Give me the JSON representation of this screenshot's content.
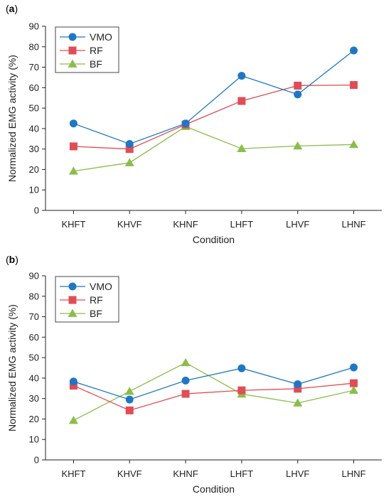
{
  "chart_data": [
    {
      "type": "line",
      "panel_label": "a",
      "categories": [
        "KHFT",
        "KHVF",
        "KHNF",
        "LHFT",
        "LHVF",
        "LHNF"
      ],
      "xlabel": "Condition",
      "ylabel": "Normalized EMG activity (%)",
      "ylim": [
        0,
        90
      ],
      "yticks": [
        0,
        10,
        20,
        30,
        40,
        50,
        60,
        70,
        80,
        90
      ],
      "grid": false,
      "legend_position": "top-left",
      "series": [
        {
          "name": "VMO",
          "color": "#1f77c4",
          "marker": "circle",
          "values": [
            42.5,
            32.5,
            42.5,
            65.8,
            56.7,
            78.2
          ]
        },
        {
          "name": "RF",
          "color": "#e04d55",
          "marker": "square",
          "values": [
            31.3,
            30.0,
            42.0,
            53.5,
            61.0,
            61.3
          ]
        },
        {
          "name": "BF",
          "color": "#8cbd4a",
          "marker": "triangle",
          "values": [
            19.2,
            23.3,
            41.0,
            30.2,
            31.5,
            32.2
          ]
        }
      ]
    },
    {
      "type": "line",
      "panel_label": "b",
      "categories": [
        "KHFT",
        "KHVF",
        "KHNF",
        "LHFT",
        "LHVF",
        "LHNF"
      ],
      "xlabel": "Condition",
      "ylabel": "Normalized EMG activity (%)",
      "ylim": [
        0,
        90
      ],
      "yticks": [
        0,
        10,
        20,
        30,
        40,
        50,
        60,
        70,
        80,
        90
      ],
      "grid": false,
      "legend_position": "top-left",
      "series": [
        {
          "name": "VMO",
          "color": "#1f77c4",
          "marker": "circle",
          "values": [
            38.3,
            29.5,
            38.8,
            44.8,
            37.0,
            45.2
          ]
        },
        {
          "name": "RF",
          "color": "#e04d55",
          "marker": "square",
          "values": [
            36.3,
            24.2,
            32.3,
            34.0,
            34.8,
            37.5
          ]
        },
        {
          "name": "BF",
          "color": "#8cbd4a",
          "marker": "triangle",
          "values": [
            19.3,
            33.5,
            47.5,
            32.2,
            27.8,
            34.0
          ]
        }
      ]
    }
  ]
}
